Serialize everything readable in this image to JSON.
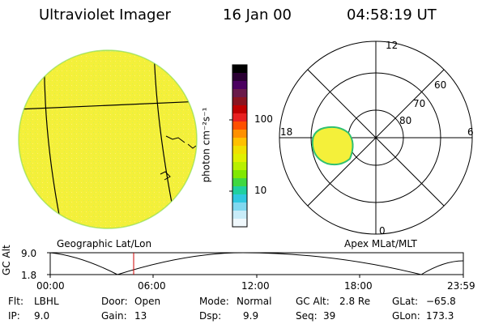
{
  "header": {
    "title": "Ultraviolet Imager",
    "date": "16 Jan 00",
    "time": "04:58:19 UT"
  },
  "colorbar": {
    "label": "photon cm⁻²s⁻¹",
    "ticks": [
      "100",
      "10"
    ],
    "colors": [
      "#000000",
      "#2a0033",
      "#4b0060",
      "#6a1a4a",
      "#8a1420",
      "#c00000",
      "#e82020",
      "#ff5000",
      "#ff9000",
      "#ffc000",
      "#f0e000",
      "#e0f000",
      "#b8f000",
      "#80e800",
      "#40d840",
      "#20d0a0",
      "#30c8e0",
      "#80d8f0",
      "#c8ecf8",
      "#f0f8fc"
    ]
  },
  "left_panel": {
    "caption": "Geographic Lat/Lon",
    "disk_color": "#f4f03a"
  },
  "polar_plot": {
    "caption": "Apex MLat/MLT",
    "labels": {
      "top": "12",
      "bottom": "0",
      "left": "18",
      "right": "6"
    },
    "rings": [
      "60",
      "70",
      "80"
    ]
  },
  "altitude_plot": {
    "ylabel": "GC Alt",
    "yticks": [
      "9.0",
      "1.8"
    ],
    "xticks": [
      "00:00",
      "06:00",
      "12:00",
      "18:00",
      "23:59"
    ],
    "marker_color": "#cc0000"
  },
  "info_rows": [
    [
      {
        "key": "Flt:",
        "val": "LBHL"
      },
      {
        "key": "Door:",
        "val": "Open"
      },
      {
        "key": "Mode:",
        "val": "Normal"
      },
      {
        "key": "GC Alt:",
        "val": "2.8 Re"
      },
      {
        "key": "GLat:",
        "val": "−65.8"
      }
    ],
    [
      {
        "key": "IP:",
        "val": "9.0"
      },
      {
        "key": "Gain:",
        "val": "13"
      },
      {
        "key": "Dsp:",
        "val": "9.9"
      },
      {
        "key": "Seq:",
        "val": "39"
      },
      {
        "key": "GLon:",
        "val": "173.3"
      }
    ]
  ]
}
